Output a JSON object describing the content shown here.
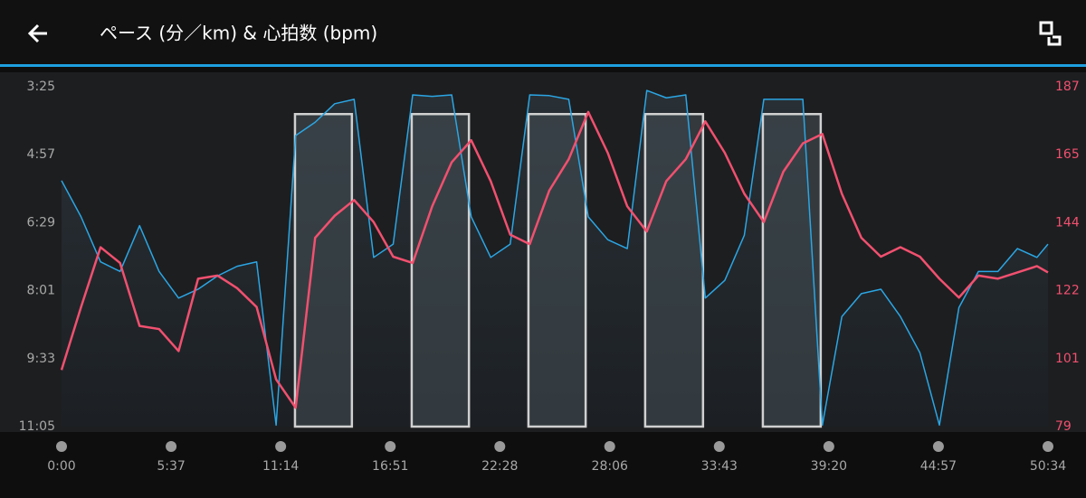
{
  "header": {
    "title": "ペース (分／km) & 心拍数 (bpm)"
  },
  "chart_data": {
    "type": "line",
    "x": [
      0,
      60,
      120,
      180,
      240,
      300,
      360,
      420,
      480,
      540,
      600,
      660,
      720,
      780,
      840,
      900,
      960,
      1020,
      1080,
      1140,
      1200,
      1260,
      1320,
      1380,
      1440,
      1500,
      1560,
      1620,
      1680,
      1740,
      1800,
      1860,
      1920,
      1980,
      2040,
      2100,
      2160,
      2220,
      2280,
      2340,
      2400,
      2460,
      2520,
      2580,
      2640,
      2700,
      2760,
      2820,
      2880,
      2940,
      3000,
      3034
    ],
    "series": [
      {
        "color": "#2ba6e4",
        "values": [
          332,
          381,
          442,
          455,
          393,
          455,
          491,
          479,
          461,
          448,
          442,
          663,
          271,
          253,
          228,
          222,
          436,
          418,
          216,
          218,
          216,
          381,
          436,
          418,
          216,
          217,
          222,
          381,
          412,
          424,
          210,
          220,
          216,
          491,
          467,
          406,
          222,
          222,
          222,
          663,
          516,
          485,
          479,
          516,
          565,
          663,
          504,
          455,
          455,
          424,
          436,
          418
        ]
      },
      {
        "color": "#f2506f",
        "axis": "y2",
        "values": [
          97,
          117,
          136,
          131,
          111,
          110,
          103,
          126,
          127,
          123,
          117,
          94,
          85,
          139,
          146,
          151,
          144,
          133,
          131,
          149,
          163,
          170,
          157,
          140,
          137,
          154,
          164,
          179,
          166,
          149,
          141,
          157,
          164,
          176,
          166,
          153,
          144,
          160,
          169,
          172,
          153,
          139,
          133,
          136,
          133,
          126,
          120,
          127,
          126,
          128,
          130,
          128
        ]
      }
    ],
    "intervals": [
      {
        "start": 718,
        "end": 893,
        "value": 242
      },
      {
        "start": 1077,
        "end": 1253,
        "value": 242
      },
      {
        "start": 1436,
        "end": 1612,
        "value": 242
      },
      {
        "start": 1795,
        "end": 1973,
        "value": 242
      },
      {
        "start": 2157,
        "end": 2335,
        "value": 242
      }
    ],
    "xlim": [
      0,
      3034
    ],
    "xticks": [
      {
        "value": 0,
        "label": "0:00"
      },
      {
        "value": 337,
        "label": "5:37"
      },
      {
        "value": 674,
        "label": "11:14"
      },
      {
        "value": 1011,
        "label": "16:51"
      },
      {
        "value": 1348,
        "label": "22:28"
      },
      {
        "value": 1686,
        "label": "28:06"
      },
      {
        "value": 2023,
        "label": "33:43"
      },
      {
        "value": 2360,
        "label": "39:20"
      },
      {
        "value": 2697,
        "label": "44:57"
      },
      {
        "value": 3034,
        "label": "50:34"
      }
    ],
    "ylim": [
      665,
      205
    ],
    "yticks": [
      {
        "value": 205,
        "label": "3:25"
      },
      {
        "value": 297,
        "label": "4:57"
      },
      {
        "value": 389,
        "label": "6:29"
      },
      {
        "value": 481,
        "label": "8:01"
      },
      {
        "value": 573,
        "label": "9:33"
      },
      {
        "value": 665,
        "label": "11:05"
      }
    ],
    "y2lim": [
      79,
      187
    ],
    "y2ticks": [
      187,
      {
        "value": 165.4,
        "label": "165"
      },
      {
        "value": 143.8,
        "label": "144"
      },
      {
        "value": 122.2,
        "label": "122"
      },
      {
        "value": 100.6,
        "label": "101"
      },
      79
    ]
  }
}
